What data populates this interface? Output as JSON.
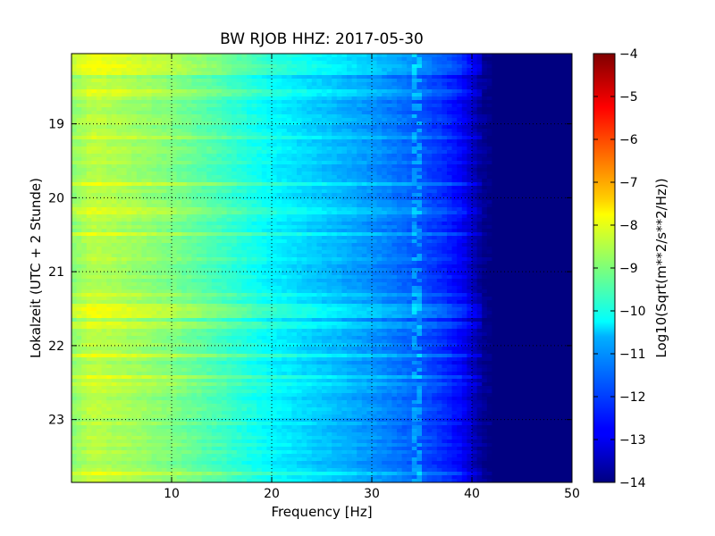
{
  "chart_data": {
    "type": "heatmap",
    "title": "BW RJOB HHZ: 2017-05-30",
    "xlabel": "Frequency [Hz]",
    "ylabel": "Lokalzeit (UTC + 2 Stunde)",
    "xlim": [
      0,
      50
    ],
    "ylim": [
      23.85,
      18.05
    ],
    "x_ticks": [
      10,
      20,
      30,
      40,
      50
    ],
    "y_ticks": [
      19,
      20,
      21,
      22,
      23
    ],
    "grid": true,
    "grid_style": "dotted",
    "colormap": "jet",
    "colorbar": {
      "label": "Log10(Sqrt(m**2/s**2/Hz))",
      "range": [
        -14,
        -4
      ],
      "ticks": [
        -4,
        -5,
        -6,
        -7,
        -8,
        -9,
        -10,
        -11,
        -12,
        -13,
        -14
      ]
    },
    "profile": {
      "description": "median log10 PSD vs frequency",
      "frequency_hz": [
        0,
        2,
        5,
        10,
        15,
        20,
        25,
        30,
        34,
        37,
        39,
        40,
        41,
        42,
        50
      ],
      "log10_psd": [
        -8.9,
        -8.4,
        -8.6,
        -9.0,
        -9.6,
        -10.3,
        -10.8,
        -11.3,
        -11.8,
        -12.3,
        -12.8,
        -13.3,
        -13.8,
        -14.0,
        -14.0
      ]
    },
    "features": [
      {
        "kind": "narrowband_line",
        "frequency_hz": 34.5
      },
      {
        "kind": "broadband_noise",
        "time_range": [
          18.05,
          18.35
        ]
      },
      {
        "kind": "broadband_noise",
        "time_range": [
          21.45,
          21.65
        ]
      }
    ]
  }
}
